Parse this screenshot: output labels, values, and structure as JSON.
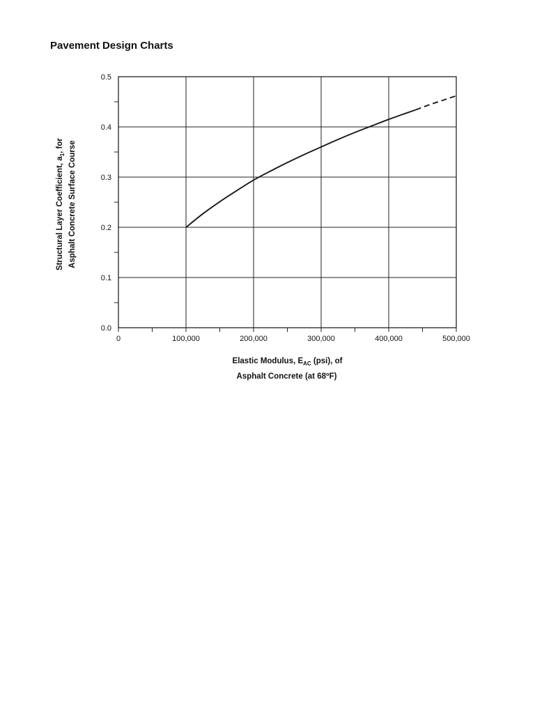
{
  "page": {
    "title": "Pavement Design Charts"
  },
  "chart_data": {
    "type": "line",
    "title": "Pavement Design Charts",
    "line_color": "#1a1a1a",
    "grid": true,
    "legend": "none",
    "xlabel": {
      "line1_prefix": "Elastic Modulus, E",
      "line1_sub": "AC",
      "line1_suffix": " (psi), of",
      "line2_prefix": "Asphalt Concrete (at 68",
      "line2_sup": "o",
      "line2_suffix": "F)"
    },
    "ylabel": {
      "line1_prefix": "Structural Layer Coefficient, a",
      "line1_sub": "1",
      "line1_suffix": ", for",
      "line2": "Asphalt Concrete Surface Course"
    },
    "x_axis": {
      "min": 0,
      "max": 500000,
      "major_ticks": [
        0,
        100000,
        200000,
        300000,
        400000,
        500000
      ],
      "tick_labels": [
        "0",
        "100,000",
        "200,000",
        "300,000",
        "400,000",
        "500,000"
      ],
      "minor_step": 50000
    },
    "y_axis": {
      "min": 0,
      "max": 0.5,
      "major_ticks": [
        0,
        0.1,
        0.2,
        0.3,
        0.4,
        0.5
      ],
      "tick_labels": [
        "0.0",
        "0.1",
        "0.2",
        "0.3",
        "0.4",
        "0.5"
      ],
      "minor_step": 0.05
    },
    "series": [
      {
        "name": "structural-layer-coefficient-solid",
        "style": "solid",
        "points": [
          [
            100000,
            0.2
          ],
          [
            125000,
            0.227
          ],
          [
            150000,
            0.251
          ],
          [
            175000,
            0.273
          ],
          [
            200000,
            0.294
          ],
          [
            225000,
            0.312
          ],
          [
            250000,
            0.329
          ],
          [
            275000,
            0.345
          ],
          [
            300000,
            0.36
          ],
          [
            325000,
            0.375
          ],
          [
            350000,
            0.389
          ],
          [
            375000,
            0.402
          ],
          [
            400000,
            0.415
          ],
          [
            425000,
            0.427
          ],
          [
            440000,
            0.434
          ]
        ]
      },
      {
        "name": "structural-layer-coefficient-extrapolated-dashed",
        "style": "dashed",
        "points": [
          [
            440000,
            0.434
          ],
          [
            460000,
            0.444
          ],
          [
            480000,
            0.453
          ],
          [
            500000,
            0.462
          ]
        ]
      }
    ]
  }
}
